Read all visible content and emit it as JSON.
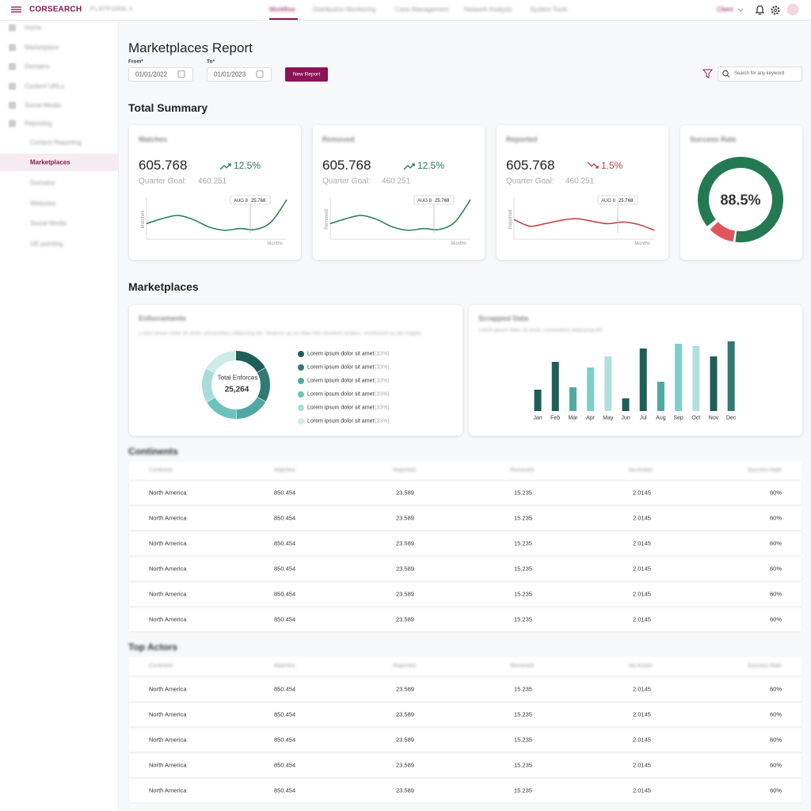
{
  "header": {
    "logo": "CORSEARCH",
    "platform": "PLATFORM X",
    "nav": [
      "Workflow",
      "Distribution Monitoring",
      "Case Management",
      "Network Analysis",
      "System Tools"
    ],
    "client": "Client",
    "avatar": "SF"
  },
  "sidebar": {
    "items": [
      "Home",
      "Marketplace",
      "Domains",
      "Content URLs",
      "Social Media",
      "Reporting"
    ],
    "subitems": [
      "Content Reporting",
      "Marketplaces",
      "Domains",
      "Websites",
      "Social Media",
      "UE pointing"
    ]
  },
  "page": {
    "title": "Marketplaces Report",
    "from_label": "From*",
    "from": "01/01/2022",
    "to_label": "To*",
    "to": "01/01/2023",
    "button": "New Report",
    "search_placeholder": "Search for any  keyword"
  },
  "summary": {
    "title": "Total Summary",
    "cards": [
      {
        "title": "Matches",
        "value": "605.768",
        "change": "12.5%",
        "goal_label": "Quarter Goal:",
        "goal": "460.251",
        "y_label": "Matches",
        "x_label": "Months",
        "tooltip_date": "AUG 8",
        "tooltip_value": "25.768",
        "color": "#237a52",
        "line": [
          30,
          42,
          50,
          40,
          22,
          14,
          18,
          16,
          34,
          88
        ]
      },
      {
        "title": "Removed",
        "value": "605.768",
        "change": "12.5%",
        "goal_label": "Quarter Goal:",
        "goal": "460.251",
        "y_label": "Removed",
        "x_label": "Months",
        "tooltip_date": "AUG 8",
        "tooltip_value": "25.768",
        "color": "#237a52",
        "line": [
          30,
          42,
          50,
          40,
          22,
          14,
          18,
          16,
          34,
          88
        ]
      },
      {
        "title": "Reported",
        "value": "605.768",
        "change": "1.5%",
        "goal_label": "Quarter Goal:",
        "goal": "460.251",
        "y_label": "Reported",
        "x_label": "Months",
        "tooltip_date": "AUG 8",
        "tooltip_value": "25.768",
        "color": "#c0393f",
        "line": [
          40,
          24,
          30,
          38,
          42,
          36,
          30,
          34,
          28,
          14
        ]
      }
    ],
    "success": {
      "title": "Success Rate",
      "value": 88.5,
      "label": "88.5%"
    }
  },
  "marketplaces": {
    "title": "Marketplaces",
    "enforcements": {
      "title": "Enforcements",
      "description": "Lorem ipsum dolor sit amet, consectetur adipiscing elit. Vivamus ac ex vitae felis tincidunt tempus. Vestibulum ac dui magna.",
      "center_label": "Total Enforces",
      "center_value": "25,264",
      "legend": [
        {
          "label": "Lorem ipsum dolor sit amet",
          "value": 33,
          "value_label": "(33%)",
          "color": "#1d5e58"
        },
        {
          "label": "Lorem ipsum dolor sit amet",
          "value": 33,
          "value_label": "(33%)",
          "color": "#2f7a73"
        },
        {
          "label": "Lorem ipsum dolor sit amet",
          "value": 33,
          "value_label": "(33%)",
          "color": "#4fa9a2"
        },
        {
          "label": "Lorem ipsum dolor sit amet",
          "value": 33,
          "value_label": "(33%)",
          "color": "#6cc3bd"
        },
        {
          "label": "Lorem ipsum dolor sit amet",
          "value": 33,
          "value_label": "(33%)",
          "color": "#a9dcd9"
        },
        {
          "label": "Lorem ipsum dolor sit amet",
          "value": 33,
          "value_label": "(33%)",
          "color": "#cdebe9"
        }
      ]
    },
    "scrapped": {
      "title": "Scrapped Data",
      "description": "Lorem ipsum dolor sit amet, consectetur adipiscing elit."
    }
  },
  "chart_data": {
    "type": "bar",
    "categories": [
      "Jan",
      "Feb",
      "Mar",
      "Apr",
      "May",
      "Jun",
      "Jul",
      "Aug",
      "Sep",
      "Oct",
      "Nov",
      "Dec"
    ],
    "values": [
      27,
      62,
      30,
      55,
      69,
      16,
      79,
      37,
      85,
      82,
      69,
      88
    ],
    "colors": [
      "#1d5e58",
      "#1d5e58",
      "#4fa9a2",
      "#7fcfcb",
      "#b2e0de",
      "#1d5e58",
      "#1d5e58",
      "#4fa9a2",
      "#7fcfcb",
      "#b2e0de",
      "#1d5e58",
      "#2f7a73"
    ],
    "ylim": [
      0,
      100
    ]
  },
  "tables": [
    {
      "title": "Continents",
      "columns": [
        "Continent",
        "Matches",
        "Reported",
        "Removed",
        "No Action",
        "Success Rate"
      ],
      "rows": [
        [
          "North America",
          "850.454",
          "23.589",
          "15.235",
          "2.0145",
          "60%"
        ],
        [
          "North America",
          "850.454",
          "23.589",
          "15.235",
          "2.0145",
          "60%"
        ],
        [
          "North America",
          "850.454",
          "23.589",
          "15.235",
          "2.0145",
          "60%"
        ],
        [
          "North America",
          "850.454",
          "23.589",
          "15.235",
          "2.0145",
          "60%"
        ],
        [
          "North America",
          "850.454",
          "23.589",
          "15.235",
          "2.0145",
          "60%"
        ],
        [
          "North America",
          "850.454",
          "23.589",
          "15.235",
          "2.0145",
          "60%"
        ]
      ]
    },
    {
      "title": "Top Actors",
      "columns": [
        "Continent",
        "Matches",
        "Reported",
        "Removed",
        "No Action",
        "Success Rate"
      ],
      "rows": [
        [
          "North America",
          "850.454",
          "23.589",
          "15.235",
          "2.0145",
          "60%"
        ],
        [
          "North America",
          "850.454",
          "23.589",
          "15.235",
          "2.0145",
          "60%"
        ],
        [
          "North America",
          "850.454",
          "23.589",
          "15.235",
          "2.0145",
          "60%"
        ],
        [
          "North America",
          "850.454",
          "23.589",
          "15.235",
          "2.0145",
          "60%"
        ],
        [
          "North America",
          "850.454",
          "23.589",
          "15.235",
          "2.0145",
          "60%"
        ]
      ]
    }
  ]
}
